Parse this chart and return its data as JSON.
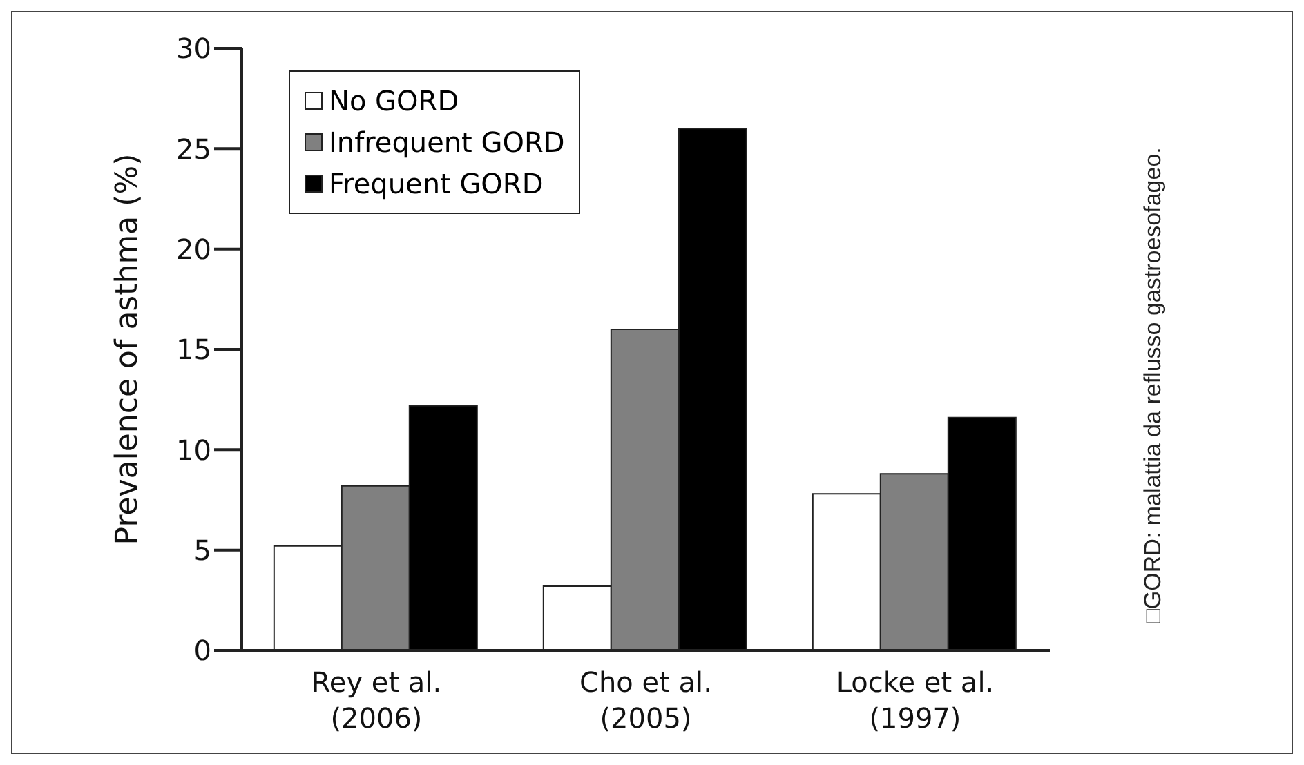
{
  "chart_data": {
    "type": "bar",
    "ylabel": "Prevalence of asthma (%)",
    "categories": [
      "Rey et al.\n(2006)",
      "Cho et al.\n(2005)",
      "Locke et al.\n(1997)"
    ],
    "series": [
      {
        "name": "No GORD",
        "color": "#ffffff",
        "values": [
          5.2,
          3.2,
          7.8
        ]
      },
      {
        "name": "Infrequent GORD",
        "color": "#808080",
        "values": [
          8.2,
          16,
          8.8
        ]
      },
      {
        "name": "Frequent GORD",
        "color": "#000000",
        "values": [
          12.2,
          26,
          11.6
        ]
      }
    ],
    "ylim": [
      0,
      30
    ],
    "yticks": [
      0,
      5,
      10,
      15,
      20,
      25,
      30
    ],
    "grid": false,
    "legend": "top left",
    "annotations": [
      "□GORD: malattia da reflusso gastroesofageo."
    ]
  }
}
